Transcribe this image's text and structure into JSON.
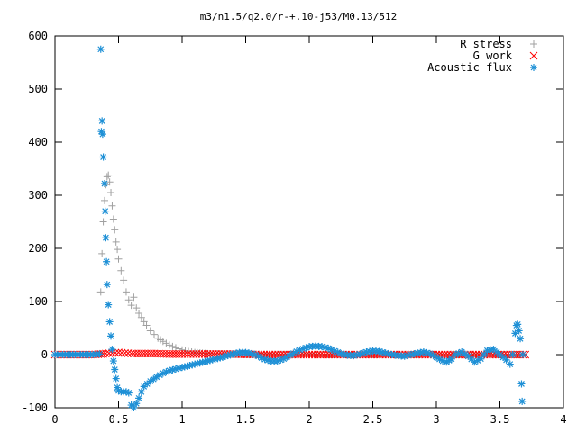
{
  "chart_data": {
    "type": "scatter",
    "title": "m3/n1.5/q2.0/r-+.10-j53/M0.13/512",
    "xlabel": "",
    "ylabel": "",
    "xlim": [
      0,
      4
    ],
    "ylim": [
      -100,
      600
    ],
    "x_ticks": [
      "0",
      "0.5",
      "1",
      "1.5",
      "2",
      "2.5",
      "3",
      "3.5",
      "4"
    ],
    "y_ticks": [
      "-100",
      "0",
      "100",
      "200",
      "300",
      "400",
      "500",
      "600"
    ],
    "legend_position": "top-right",
    "grid": false,
    "series": [
      {
        "name": "R stress",
        "marker": "+",
        "color": "#a0a0a0",
        "points": [
          [
            0.36,
            118
          ],
          [
            0.37,
            190
          ],
          [
            0.38,
            250
          ],
          [
            0.39,
            290
          ],
          [
            0.4,
            320
          ],
          [
            0.41,
            335
          ],
          [
            0.42,
            338
          ],
          [
            0.43,
            325
          ],
          [
            0.44,
            305
          ],
          [
            0.45,
            280
          ],
          [
            0.46,
            255
          ],
          [
            0.47,
            235
          ],
          [
            0.48,
            212
          ],
          [
            0.49,
            198
          ],
          [
            0.5,
            180
          ],
          [
            0.52,
            158
          ],
          [
            0.54,
            140
          ],
          [
            0.56,
            118
          ],
          [
            0.58,
            103
          ],
          [
            0.6,
            93
          ],
          [
            0.62,
            108
          ],
          [
            0.64,
            88
          ],
          [
            0.66,
            78
          ],
          [
            0.68,
            70
          ],
          [
            0.7,
            62
          ],
          [
            0.72,
            55
          ],
          [
            0.75,
            45
          ],
          [
            0.78,
            38
          ],
          [
            0.81,
            31
          ],
          [
            0.85,
            25
          ],
          [
            0.9,
            18
          ],
          [
            0.95,
            13
          ],
          [
            1.0,
            9
          ],
          [
            1.05,
            6
          ],
          [
            1.1,
            4
          ],
          [
            1.2,
            2
          ],
          [
            1.3,
            1
          ],
          [
            1.5,
            0.5
          ],
          [
            2.0,
            0
          ],
          [
            2.5,
            0
          ],
          [
            3.0,
            0
          ],
          [
            3.5,
            0
          ],
          [
            3.65,
            0
          ]
        ]
      },
      {
        "name": "G work",
        "marker": "x",
        "color": "#ff0000",
        "points": [
          [
            0.0,
            0
          ],
          [
            0.1,
            0
          ],
          [
            0.2,
            0
          ],
          [
            0.3,
            0
          ],
          [
            0.36,
            1
          ],
          [
            0.4,
            2
          ],
          [
            0.45,
            3
          ],
          [
            0.5,
            4
          ],
          [
            0.55,
            3
          ],
          [
            0.6,
            2
          ],
          [
            0.7,
            2
          ],
          [
            0.8,
            2
          ],
          [
            0.9,
            1
          ],
          [
            1.0,
            1
          ],
          [
            1.2,
            1
          ],
          [
            1.4,
            1
          ],
          [
            1.6,
            0
          ],
          [
            1.8,
            0
          ],
          [
            2.0,
            0
          ],
          [
            2.2,
            0
          ],
          [
            2.4,
            0
          ],
          [
            2.6,
            0
          ],
          [
            2.8,
            0
          ],
          [
            3.0,
            0
          ],
          [
            3.2,
            0
          ],
          [
            3.4,
            0
          ],
          [
            3.6,
            0
          ],
          [
            3.7,
            0
          ]
        ]
      },
      {
        "name": "Acoustic flux",
        "marker": "*",
        "color": "#1e90d6",
        "points": [
          [
            0.0,
            0
          ],
          [
            0.1,
            0
          ],
          [
            0.2,
            0
          ],
          [
            0.3,
            0
          ],
          [
            0.35,
            1
          ],
          [
            0.36,
            575
          ],
          [
            0.365,
            420
          ],
          [
            0.37,
            440
          ],
          [
            0.375,
            415
          ],
          [
            0.38,
            372
          ],
          [
            0.39,
            322
          ],
          [
            0.395,
            270
          ],
          [
            0.4,
            220
          ],
          [
            0.405,
            175
          ],
          [
            0.41,
            132
          ],
          [
            0.42,
            94
          ],
          [
            0.43,
            62
          ],
          [
            0.44,
            35
          ],
          [
            0.45,
            10
          ],
          [
            0.46,
            -12
          ],
          [
            0.47,
            -28
          ],
          [
            0.48,
            -45
          ],
          [
            0.49,
            -62
          ],
          [
            0.5,
            -68
          ],
          [
            0.52,
            -70
          ],
          [
            0.54,
            -70
          ],
          [
            0.56,
            -70
          ],
          [
            0.58,
            -72
          ],
          [
            0.6,
            -95
          ],
          [
            0.62,
            -100
          ],
          [
            0.64,
            -92
          ],
          [
            0.66,
            -82
          ],
          [
            0.68,
            -70
          ],
          [
            0.7,
            -60
          ],
          [
            0.75,
            -50
          ],
          [
            0.8,
            -42
          ],
          [
            0.85,
            -35
          ],
          [
            0.9,
            -30
          ],
          [
            0.95,
            -27
          ],
          [
            1.0,
            -24
          ],
          [
            1.1,
            -18
          ],
          [
            1.2,
            -12
          ],
          [
            1.3,
            -6
          ],
          [
            1.4,
            1
          ],
          [
            1.45,
            4
          ],
          [
            1.5,
            4
          ],
          [
            1.55,
            2
          ],
          [
            1.6,
            -3
          ],
          [
            1.65,
            -9
          ],
          [
            1.7,
            -12
          ],
          [
            1.75,
            -12
          ],
          [
            1.8,
            -8
          ],
          [
            1.85,
            -1
          ],
          [
            1.9,
            6
          ],
          [
            1.95,
            11
          ],
          [
            2.0,
            15
          ],
          [
            2.05,
            16
          ],
          [
            2.1,
            15
          ],
          [
            2.15,
            12
          ],
          [
            2.2,
            7
          ],
          [
            2.25,
            2
          ],
          [
            2.3,
            -1
          ],
          [
            2.35,
            -2
          ],
          [
            2.4,
            1
          ],
          [
            2.45,
            5
          ],
          [
            2.5,
            7
          ],
          [
            2.55,
            6
          ],
          [
            2.6,
            3
          ],
          [
            2.65,
            0
          ],
          [
            2.7,
            -2
          ],
          [
            2.75,
            -3
          ],
          [
            2.8,
            0
          ],
          [
            2.85,
            3
          ],
          [
            2.9,
            5
          ],
          [
            2.95,
            2
          ],
          [
            3.0,
            -5
          ],
          [
            3.05,
            -12
          ],
          [
            3.08,
            -14
          ],
          [
            3.12,
            -8
          ],
          [
            3.15,
            0
          ],
          [
            3.2,
            5
          ],
          [
            3.25,
            -3
          ],
          [
            3.3,
            -14
          ],
          [
            3.35,
            -8
          ],
          [
            3.4,
            8
          ],
          [
            3.45,
            10
          ],
          [
            3.5,
            0
          ],
          [
            3.55,
            -10
          ],
          [
            3.58,
            -18
          ],
          [
            3.6,
            0
          ],
          [
            3.62,
            40
          ],
          [
            3.63,
            55
          ],
          [
            3.64,
            57
          ],
          [
            3.65,
            45
          ],
          [
            3.66,
            30
          ],
          [
            3.67,
            -55
          ],
          [
            3.675,
            -88
          ],
          [
            3.68,
            0
          ]
        ]
      }
    ]
  }
}
